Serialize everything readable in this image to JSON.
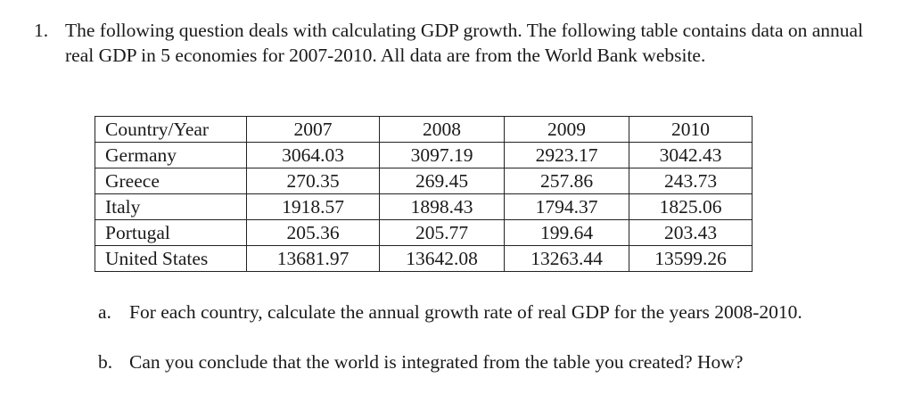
{
  "question": {
    "number": "1.",
    "text": "The following question deals with calculating GDP growth. The following table contains data on annual real GDP in 5 economies for 2007-2010. All data are from the World Bank website."
  },
  "table": {
    "header": [
      "Country/Year",
      "2007",
      "2008",
      "2009",
      "2010"
    ],
    "rows": [
      [
        "Germany",
        "3064.03",
        "3097.19",
        "2923.17",
        "3042.43"
      ],
      [
        "Greece",
        "270.35",
        "269.45",
        "257.86",
        "243.73"
      ],
      [
        "Italy",
        "1918.57",
        "1898.43",
        "1794.37",
        "1825.06"
      ],
      [
        "Portugal",
        "205.36",
        "205.77",
        "199.64",
        "203.43"
      ],
      [
        "United States",
        "13681.97",
        "13642.08",
        "13263.44",
        "13599.26"
      ]
    ]
  },
  "subquestions": [
    {
      "marker": "a.",
      "text": "For each country, calculate the annual growth rate of real GDP for the years 2008-2010."
    },
    {
      "marker": "b.",
      "text": "Can you conclude that the world is integrated from the table you created? How?"
    }
  ]
}
